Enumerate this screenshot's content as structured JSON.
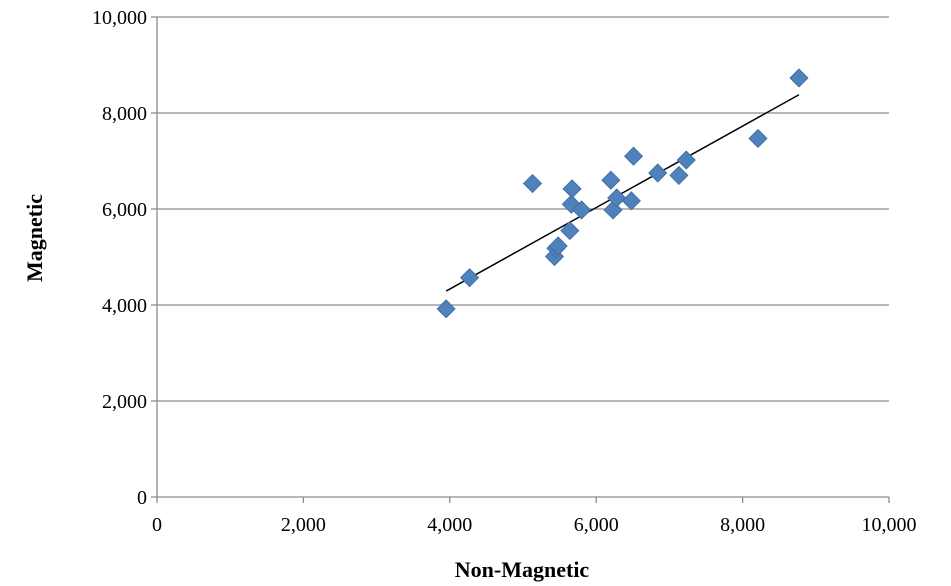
{
  "chart_data": {
    "type": "scatter",
    "title": "",
    "xlabel": "Non-Magnetic",
    "ylabel": "Magnetic",
    "xlim": [
      0,
      10000
    ],
    "ylim": [
      0,
      10000
    ],
    "x_ticks": [
      0,
      2000,
      4000,
      6000,
      8000,
      10000
    ],
    "y_ticks": [
      0,
      2000,
      4000,
      6000,
      8000,
      10000
    ],
    "x_tick_labels": [
      "0",
      "2,000",
      "4,000",
      "6,000",
      "8,000",
      "10,000"
    ],
    "y_tick_labels": [
      "0",
      "2,000",
      "4,000",
      "6,000",
      "8,000",
      "10,000"
    ],
    "grid": {
      "horizontal": true,
      "vertical": false
    },
    "legend": "none",
    "marker": "diamond",
    "marker_color": "#4f81bd",
    "series": [
      {
        "x": [
          3950,
          4270,
          5130,
          5430,
          5450,
          5480,
          5640,
          5660,
          5670,
          5800,
          6200,
          6230,
          6280,
          6480,
          6510,
          6840,
          7130,
          7230,
          8210,
          8770
        ],
        "y": [
          3920,
          4570,
          6530,
          5010,
          5180,
          5230,
          5550,
          6100,
          6420,
          5980,
          6600,
          5980,
          6230,
          6170,
          7100,
          6750,
          6700,
          7020,
          7470,
          8730
        ]
      }
    ],
    "trendline": {
      "type": "linear",
      "x": [
        3950,
        8770
      ],
      "y": [
        4290,
        8380
      ],
      "color": "#000000"
    }
  }
}
